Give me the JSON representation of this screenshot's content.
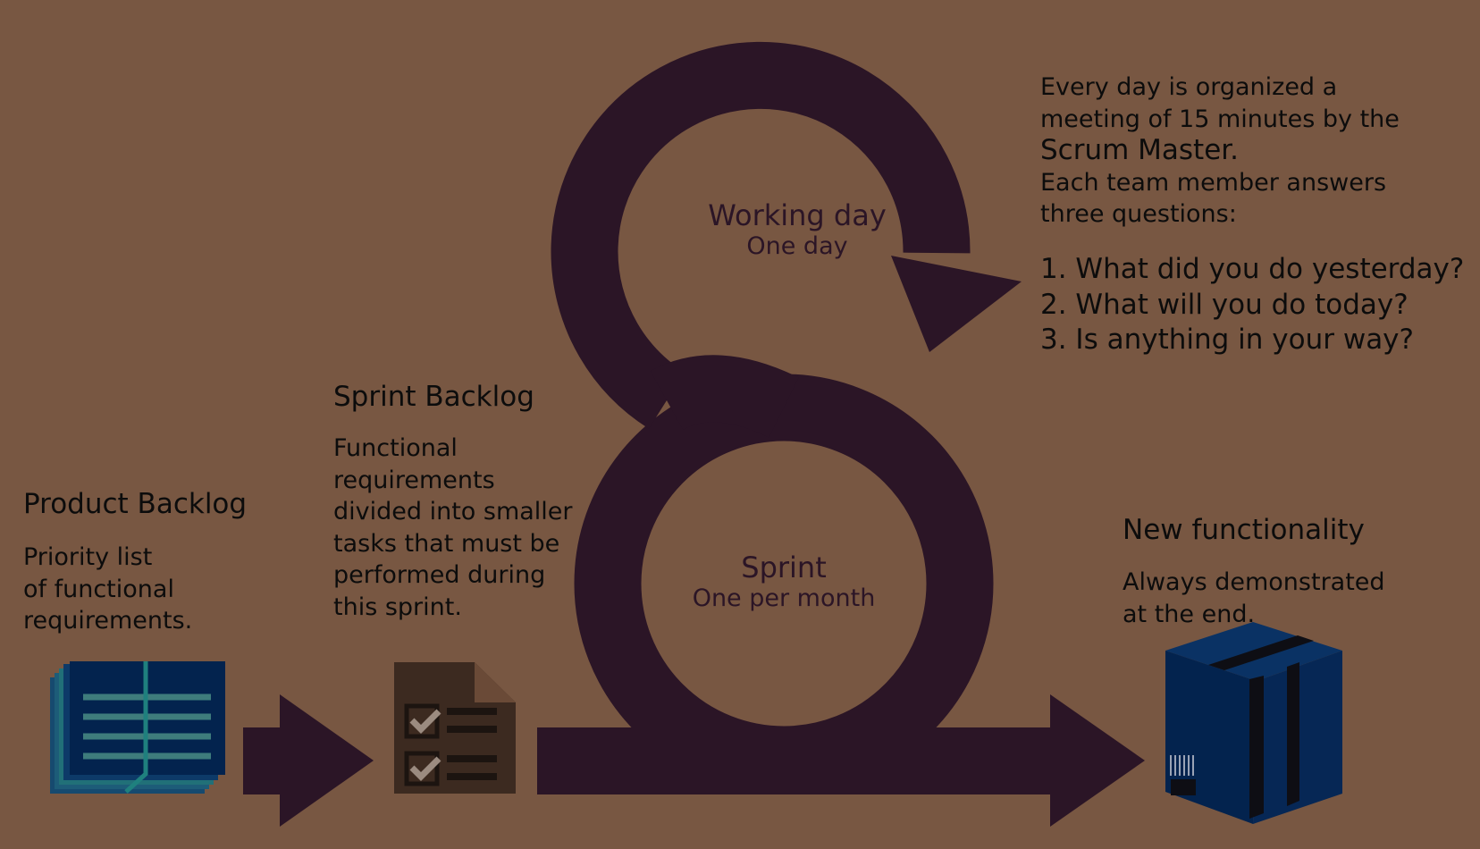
{
  "product_backlog": {
    "title": "Product Backlog",
    "description": [
      "Priority list",
      "of functional",
      "requirements."
    ]
  },
  "sprint_backlog": {
    "title": "Sprint Backlog",
    "description": [
      "Functional",
      "requirements",
      "divided into smaller",
      "tasks that must be",
      "performed during",
      "this sprint."
    ]
  },
  "working_day": {
    "title": "Working day",
    "subtitle": "One day"
  },
  "sprint": {
    "title": "Sprint",
    "subtitle": "One per month"
  },
  "daily_meeting": {
    "lines": [
      "Every day is organized a",
      "meeting of 15 minutes by the"
    ],
    "highlight": "Scrum Master.",
    "lines2": [
      "Each team member answers",
      "three questions:"
    ],
    "questions": [
      "1. What did you do yesterday?",
      "2. What will you do today?",
      "3. Is anything in your way?"
    ]
  },
  "new_functionality": {
    "title": "New functionality",
    "description": [
      "Always demonstrated",
      "at the end."
    ]
  },
  "icons": {
    "product_backlog": "book-stack-icon",
    "sprint_backlog": "checklist-document-icon",
    "new_functionality": "shipping-box-icon"
  },
  "colors": {
    "background": "#785742",
    "flow": "#2b1526",
    "book": "#03234e",
    "box": "#062755"
  }
}
